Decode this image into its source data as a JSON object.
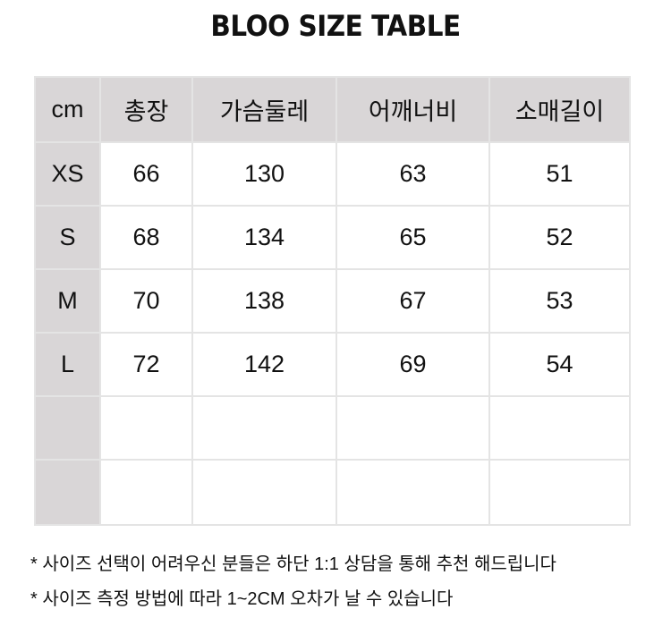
{
  "title": "BLOO SIZE TABLE",
  "table": {
    "headers": [
      "cm",
      "총장",
      "가슴둘레",
      "어깨너비",
      "소매길이"
    ],
    "rows": [
      [
        "XS",
        "66",
        "130",
        "63",
        "51"
      ],
      [
        "S",
        "68",
        "134",
        "65",
        "52"
      ],
      [
        "M",
        "70",
        "138",
        "67",
        "53"
      ],
      [
        "L",
        "72",
        "142",
        "69",
        "54"
      ],
      [
        "",
        "",
        "",
        "",
        ""
      ],
      [
        "",
        "",
        "",
        "",
        ""
      ]
    ]
  },
  "notes": [
    "* 사이즈 선택이 어려우신 분들은 하단 1:1 상담을 통해 추천 해드립니다",
    "* 사이즈 측정 방법에 따라 1~2CM 오차가 날 수 있습니다"
  ],
  "colors": {
    "header_bg": "#d9d6d7",
    "border": "#e4e4e4"
  }
}
